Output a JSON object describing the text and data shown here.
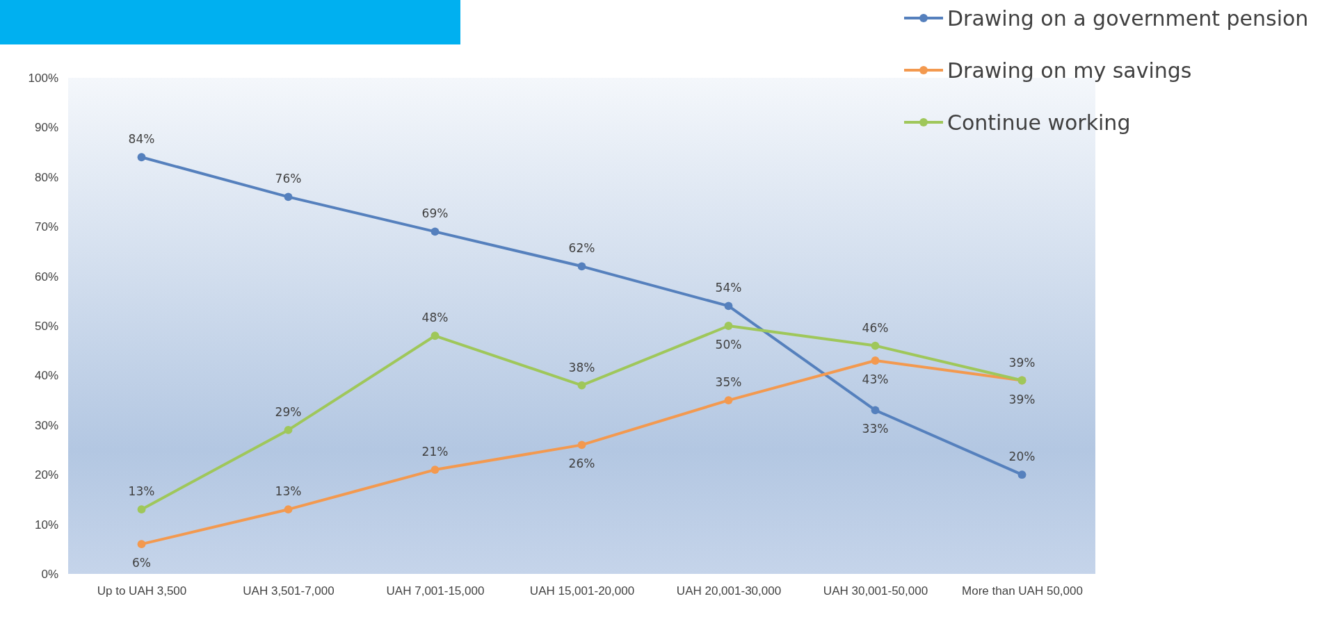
{
  "chart_data": {
    "type": "line",
    "categories": [
      "Up to UAH 3,500",
      "UAH 3,501-7,000",
      "UAH 7,001-15,000",
      "UAH 15,001-20,000",
      "UAH 20,001-30,000",
      "UAH 30,001-50,000",
      "More than UAH 50,000"
    ],
    "series": [
      {
        "name": "Drawing on a government pension",
        "color": "#5580bd",
        "values": [
          84,
          76,
          69,
          62,
          54,
          33,
          20
        ],
        "value_labels": [
          "84%",
          "76%",
          "69%",
          "62%",
          "54%",
          "33%",
          "20%"
        ]
      },
      {
        "name": "Drawing on my savings",
        "color": "#f3994f",
        "values": [
          6,
          13,
          21,
          26,
          35,
          43,
          39
        ],
        "value_labels": [
          "6%",
          "13%",
          "21%",
          "26%",
          "35%",
          "43%",
          "39%"
        ]
      },
      {
        "name": "Continue working",
        "color": "#9fc75a",
        "values": [
          13,
          29,
          48,
          38,
          50,
          46,
          39
        ],
        "value_labels": [
          "13%",
          "29%",
          "48%",
          "38%",
          "50%",
          "46%",
          "39%"
        ]
      }
    ],
    "ylim": [
      0,
      100
    ],
    "yticks": [
      {
        "value": 0,
        "label": "0%"
      },
      {
        "value": 10,
        "label": "10%"
      },
      {
        "value": 20,
        "label": "20%"
      },
      {
        "value": 30,
        "label": "30%"
      },
      {
        "value": 40,
        "label": "40%"
      },
      {
        "value": 50,
        "label": "50%"
      },
      {
        "value": 60,
        "label": "60%"
      },
      {
        "value": 70,
        "label": "70%"
      },
      {
        "value": 80,
        "label": "80%"
      },
      {
        "value": 90,
        "label": "90%"
      },
      {
        "value": 100,
        "label": "100%"
      }
    ],
    "grid": false,
    "legend": "top right",
    "marker": "circle",
    "line_style": "solid"
  }
}
